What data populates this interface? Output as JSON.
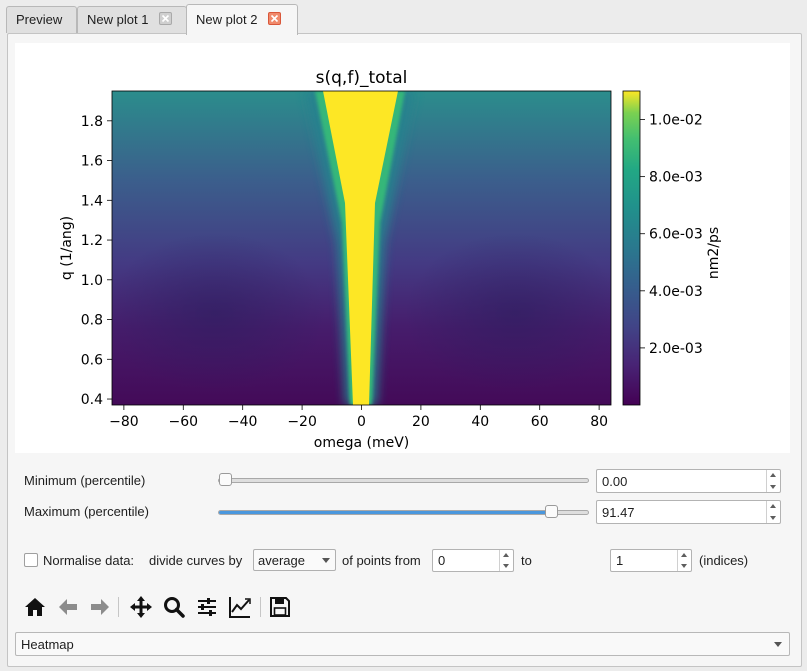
{
  "tabs": [
    {
      "label": "Preview",
      "closable": false
    },
    {
      "label": "New plot 1",
      "closable": true
    },
    {
      "label": "New plot 2",
      "closable": true
    }
  ],
  "chart_data": {
    "type": "heatmap",
    "title": "s(q,f)_total",
    "xlabel": "omega (meV)",
    "ylabel": "q (1/ang)",
    "xlim": [
      -84,
      84
    ],
    "ylim": [
      0.37,
      1.95
    ],
    "xticks": [
      -80,
      -60,
      -40,
      -20,
      0,
      20,
      40,
      60,
      80
    ],
    "xtick_labels": [
      "−80",
      "−60",
      "−40",
      "−20",
      "0",
      "20",
      "40",
      "60",
      "80"
    ],
    "yticks": [
      0.4,
      0.6,
      0.8,
      1.0,
      1.2,
      1.4,
      1.6,
      1.8
    ],
    "ytick_labels": [
      "0.4",
      "0.6",
      "0.8",
      "1.0",
      "1.2",
      "1.4",
      "1.6",
      "1.8"
    ],
    "colormap": "viridis",
    "colorbar": {
      "label": "nm2/ps",
      "range": [
        0.0,
        0.011
      ],
      "ticks": [
        0.002,
        0.004,
        0.006,
        0.008,
        0.01
      ],
      "tick_labels": [
        "2.0e-03",
        "4.0e-03",
        "6.0e-03",
        "8.0e-03",
        "1.0e-02"
      ]
    }
  },
  "controls": {
    "minimum": {
      "label": "Minimum (percentile)",
      "value": "0.00",
      "percentile": 0
    },
    "maximum": {
      "label": "Maximum (percentile)",
      "value": "91.47",
      "percentile": 91.47
    },
    "normalise": {
      "checkbox_label": "Normalise data:",
      "divide_label": "divide curves by",
      "method": "average",
      "points_label": "of points from",
      "from_value": "0",
      "to_label": "to",
      "to_value": "1",
      "indices_label": "(indices)"
    }
  },
  "toolbar": {
    "icons": [
      "home-icon",
      "back-arrow-icon",
      "forward-arrow-icon",
      "pan-icon",
      "zoom-icon",
      "configure-subplots-icon",
      "edit-axis-icon",
      "save-icon"
    ]
  },
  "plot_type": {
    "selected": "Heatmap"
  },
  "colors": {
    "accent": "#4a97dd",
    "close_active": "#f08a6c"
  }
}
